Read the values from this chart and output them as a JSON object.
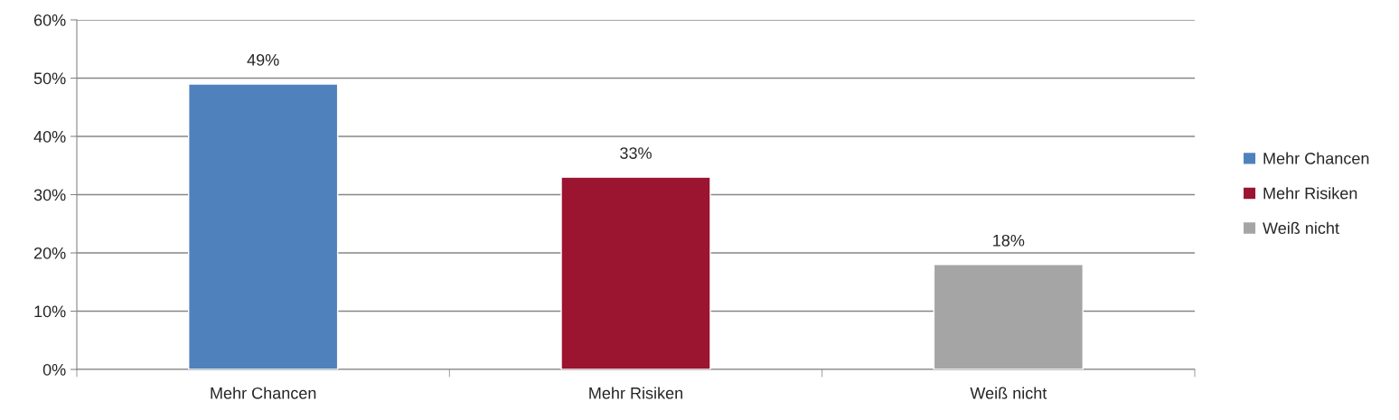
{
  "chart_data": {
    "type": "bar",
    "categories": [
      "Mehr Chancen",
      "Mehr Risiken",
      "Weiß nicht"
    ],
    "series": [
      {
        "name": "Mehr Chancen",
        "color": "#4f81bd",
        "values": [
          49,
          null,
          null
        ],
        "value_labels": [
          "49%",
          null,
          null
        ]
      },
      {
        "name": "Mehr Risiken",
        "color": "#9b1430",
        "values": [
          null,
          33,
          null
        ],
        "value_labels": [
          null,
          "33%",
          null
        ]
      },
      {
        "name": "Weiß nicht",
        "color": "#a5a5a5",
        "values": [
          null,
          null,
          18
        ],
        "value_labels": [
          null,
          null,
          "18%"
        ]
      }
    ],
    "ylim": [
      0,
      60
    ],
    "yticks": [
      {
        "value": 0,
        "label": "0%"
      },
      {
        "value": 10,
        "label": "10%"
      },
      {
        "value": 20,
        "label": "20%"
      },
      {
        "value": 30,
        "label": "30%"
      },
      {
        "value": 40,
        "label": "40%"
      },
      {
        "value": 50,
        "label": "50%"
      },
      {
        "value": 60,
        "label": "60%"
      }
    ],
    "grid": "y",
    "legend": "right"
  }
}
